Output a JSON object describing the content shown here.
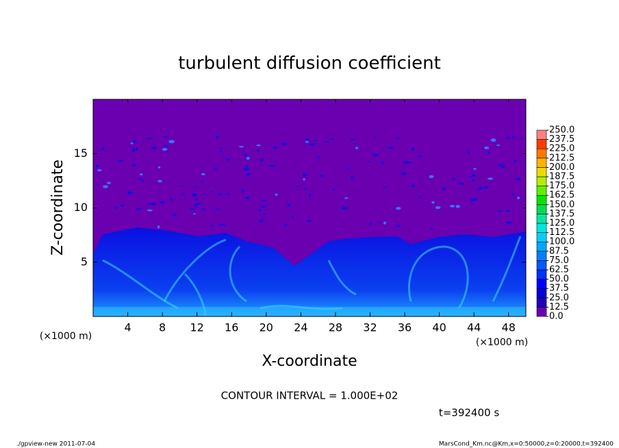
{
  "chart_data": {
    "type": "heatmap",
    "title": "turbulent diffusion coefficient",
    "xlabel": "X-coordinate",
    "ylabel": "Z-coordinate",
    "axis_unit": "(×1000 m)",
    "xlim": [
      0,
      50
    ],
    "xticks": [
      4,
      8,
      12,
      16,
      20,
      24,
      28,
      32,
      36,
      40,
      44,
      48
    ],
    "ylim": [
      0,
      20
    ],
    "yticks": [
      5,
      10,
      15
    ],
    "colorbar": {
      "ticks": [
        {
          "value": 0,
          "label": "0.0"
        },
        {
          "value": 12.5,
          "label": "12.5"
        },
        {
          "value": 25,
          "label": "25.0"
        },
        {
          "value": 37.5,
          "label": "37.5"
        },
        {
          "value": 50,
          "label": "50.0"
        },
        {
          "value": 62.5,
          "label": "62.5"
        },
        {
          "value": 75,
          "label": "75.0"
        },
        {
          "value": 87.5,
          "label": "87.5"
        },
        {
          "value": 100,
          "label": "100.0"
        },
        {
          "value": 112.5,
          "label": "112.5"
        },
        {
          "value": 125,
          "label": "125.0"
        },
        {
          "value": 137.5,
          "label": "137.5"
        },
        {
          "value": 150,
          "label": "150.0"
        },
        {
          "value": 162.5,
          "label": "162.5"
        },
        {
          "value": 175,
          "label": "175.0"
        },
        {
          "value": 187.5,
          "label": "187.5"
        },
        {
          "value": 200,
          "label": "200.0"
        },
        {
          "value": 212.5,
          "label": "212.5"
        },
        {
          "value": 225,
          "label": "225.0"
        },
        {
          "value": 237.5,
          "label": "237.5"
        },
        {
          "value": 250,
          "label": "250.0"
        }
      ],
      "colors": [
        "#6a00b0",
        "#2000b8",
        "#0000dc",
        "#0000ff",
        "#0030ff",
        "#0058ff",
        "#0080ff",
        "#00a8ff",
        "#00d0ff",
        "#00e8e0",
        "#00e8a0",
        "#00dc50",
        "#00e600",
        "#60f000",
        "#b0f000",
        "#e8dc00",
        "#ffb400",
        "#ff7800",
        "#ff3c00",
        "#ff8080"
      ]
    },
    "contour_note": "CONTOUR INTERVAL = 1.000E+02",
    "time_label": "t=392400 s",
    "footer_left": "./gpview-new   2011-07-04",
    "footer_right": "MarsCond_Km.nc@Km,x=0:50000,z=0:20000,t=392400"
  }
}
